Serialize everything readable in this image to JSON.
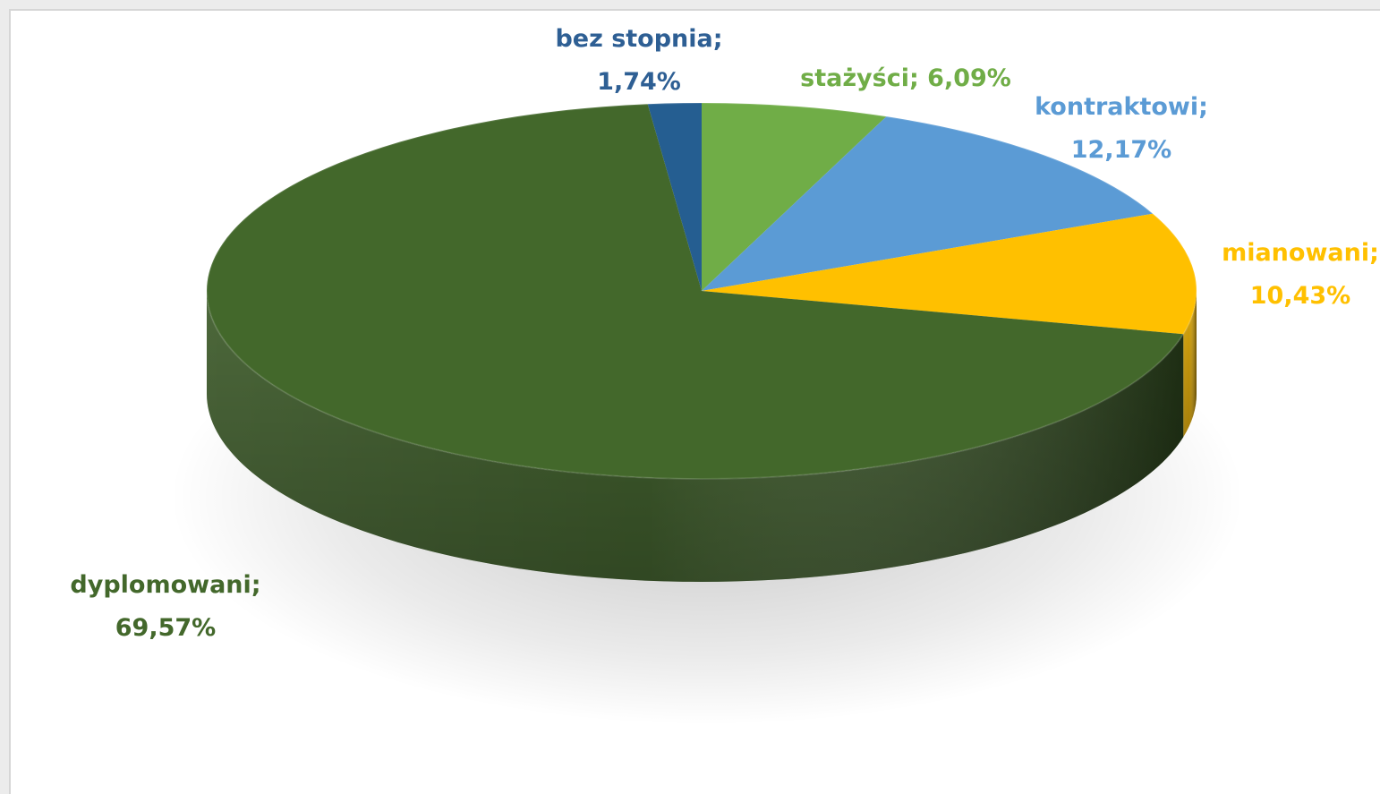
{
  "chart_data": {
    "type": "pie",
    "style": "3d",
    "slices": [
      {
        "label": "bez stopnia",
        "value": 1.74,
        "value_text": "1,74%",
        "color": "#255e91"
      },
      {
        "label": "stażyści",
        "value": 6.09,
        "value_text": "6,09%",
        "color": "#70ad47"
      },
      {
        "label": "kontraktowi",
        "value": 12.17,
        "value_text": "12,17%",
        "color": "#5b9bd5"
      },
      {
        "label": "mianowani",
        "value": 10.43,
        "value_text": "10,43%",
        "color": "#ffc000"
      },
      {
        "label": "dyplomowani",
        "value": 69.57,
        "value_text": "69,57%",
        "color": "#43682b"
      }
    ],
    "legend": "none",
    "data_labels": "outside"
  }
}
